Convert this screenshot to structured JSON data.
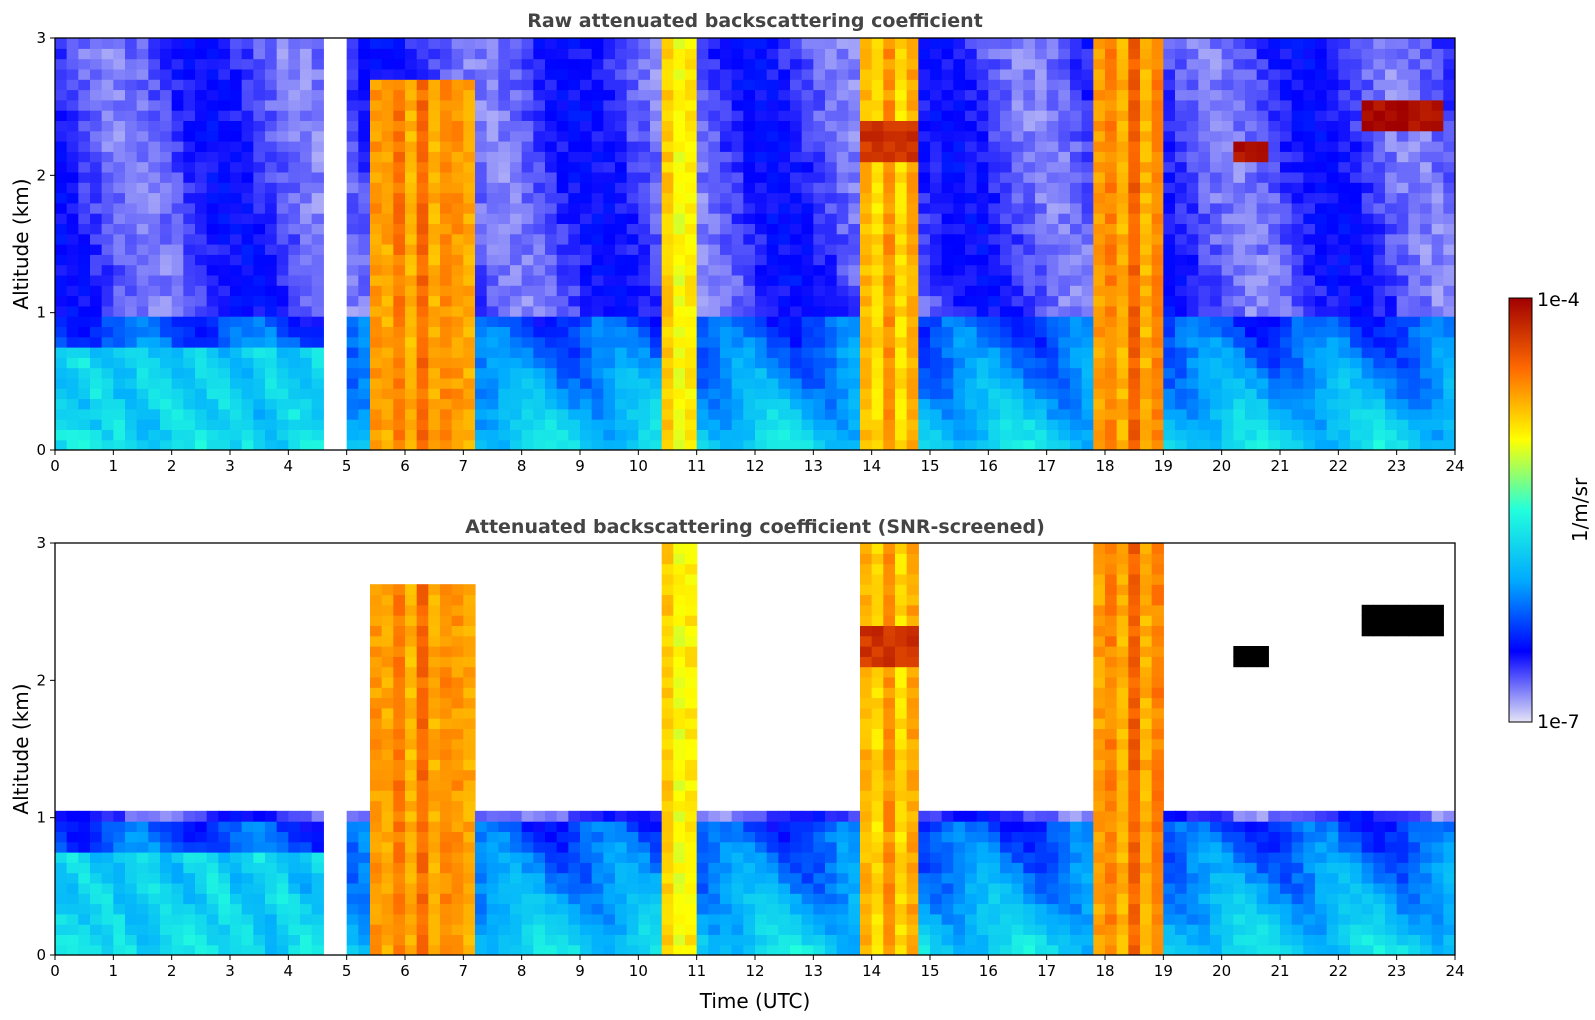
{
  "chart_data": [
    {
      "type": "heatmap",
      "title": "Raw attenuated backscattering coefficient",
      "xlabel": "",
      "ylabel": "Altitude (km)",
      "xlim": [
        0,
        24
      ],
      "ylim": [
        0,
        3
      ],
      "x_ticks": [
        "0",
        "1",
        "2",
        "3",
        "4",
        "5",
        "6",
        "7",
        "8",
        "9",
        "10",
        "11",
        "12",
        "13",
        "14",
        "15",
        "16",
        "17",
        "18",
        "19",
        "20",
        "21",
        "22",
        "23",
        "24"
      ],
      "y_ticks": [
        "0",
        "1",
        "2",
        "3"
      ],
      "data_gap_utc": [
        4.62,
        5.07
      ],
      "features": [
        {
          "kind": "boundary_layer",
          "x_range": [
            0,
            4.6
          ],
          "top_km": 0.75,
          "level": 0.4
        },
        {
          "kind": "cloud_column",
          "x_range": [
            5.5,
            7.2
          ],
          "top_km": 2.7,
          "level": 0.85
        },
        {
          "kind": "cloud_column",
          "x_range": [
            10.3,
            11.0
          ],
          "top_km": 3.0,
          "level": 0.75
        },
        {
          "kind": "cloud_column",
          "x_range": [
            13.8,
            14.8
          ],
          "top_km": 3.0,
          "level": 0.8
        },
        {
          "kind": "cloud_layer",
          "x_range": [
            13.9,
            14.8
          ],
          "alt_km": [
            2.1,
            2.4
          ],
          "level": 0.92
        },
        {
          "kind": "cloud_column",
          "x_range": [
            17.9,
            19.0
          ],
          "top_km": 3.0,
          "level": 0.85
        },
        {
          "kind": "cloud_layer",
          "x_range": [
            20.3,
            20.9
          ],
          "alt_km": [
            2.1,
            2.25
          ],
          "level": 0.98
        },
        {
          "kind": "cloud_layer",
          "x_range": [
            22.5,
            23.9
          ],
          "alt_km": [
            2.3,
            2.55
          ],
          "level": 0.98
        }
      ]
    },
    {
      "type": "heatmap",
      "title": "Attenuated backscattering coefficient (SNR-screened)",
      "xlabel": "Time (UTC)",
      "ylabel": "Altitude (km)",
      "xlim": [
        0,
        24
      ],
      "ylim": [
        0,
        3
      ],
      "x_ticks": [
        "0",
        "1",
        "2",
        "3",
        "4",
        "5",
        "6",
        "7",
        "8",
        "9",
        "10",
        "11",
        "12",
        "13",
        "14",
        "15",
        "16",
        "17",
        "18",
        "19",
        "20",
        "21",
        "22",
        "23",
        "24"
      ],
      "y_ticks": [
        "0",
        "1",
        "2",
        "3"
      ],
      "data_gap_utc": [
        4.62,
        5.07
      ],
      "screened_background_top_km": 1.05
    }
  ],
  "colorbar": {
    "label": "1/m/sr",
    "min_label": "1e-7",
    "max_label": "1e-4",
    "colormap": [
      "#e4e4f6",
      "#0000ff",
      "#00aaff",
      "#22ffdd",
      "#ffff00",
      "#ff6a00",
      "#a00000"
    ]
  }
}
